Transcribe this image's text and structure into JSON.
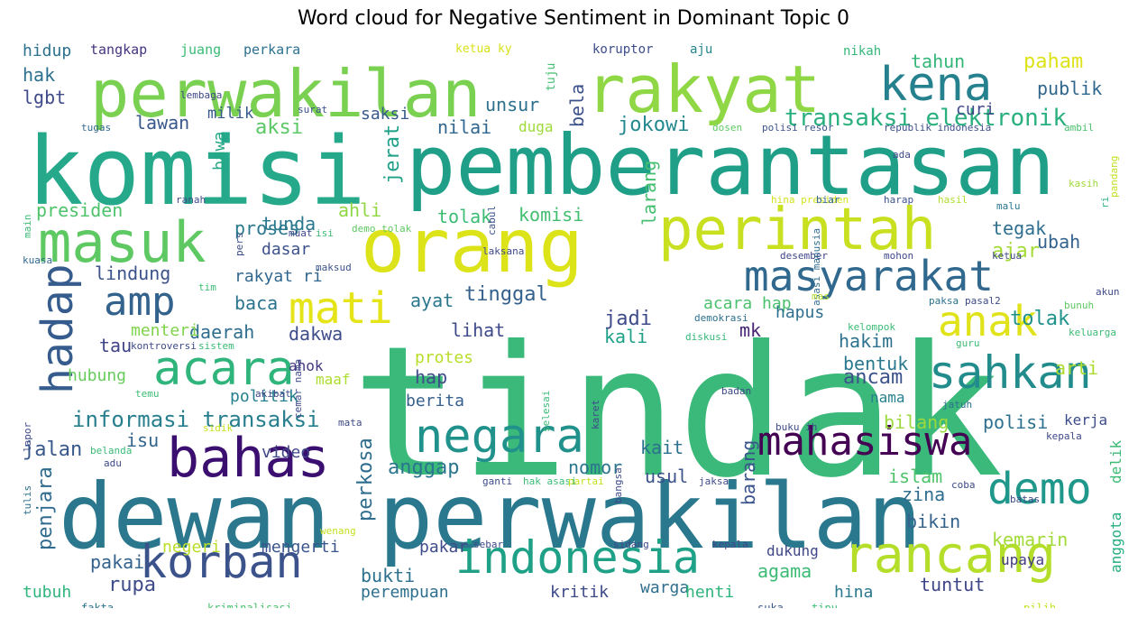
{
  "title": "Word cloud for Negative Sentiment in Dominant Topic 0",
  "words": [
    {
      "text": "tindak",
      "color": "#3bb97a"
    },
    {
      "text": "komisi",
      "color": "#25a98a"
    },
    {
      "text": "pemberantasan",
      "color": "#1f9f88"
    },
    {
      "text": "dewan",
      "color": "#2b788e"
    },
    {
      "text": "perwakilan",
      "color": "#29788e"
    },
    {
      "text": "perwakilan",
      "color": "#7ad151"
    },
    {
      "text": "rakyat",
      "color": "#8fd744"
    },
    {
      "text": "orang",
      "color": "#dce318"
    },
    {
      "text": "perintah",
      "color": "#c8e020"
    },
    {
      "text": "masuk",
      "color": "#5ec962"
    },
    {
      "text": "bahas",
      "color": "#3b0f70"
    },
    {
      "text": "negara",
      "color": "#21918c"
    },
    {
      "text": "kena",
      "color": "#26818e"
    },
    {
      "text": "masyarakat",
      "color": "#31688e"
    },
    {
      "text": "mahasiswa",
      "color": "#440154"
    },
    {
      "text": "korban",
      "color": "#3b528b"
    },
    {
      "text": "indonesia",
      "color": "#1fa187"
    },
    {
      "text": "rancang",
      "color": "#b5de2b"
    },
    {
      "text": "acara",
      "color": "#2fb47c"
    },
    {
      "text": "sahkan",
      "color": "#228c8d"
    },
    {
      "text": "anak",
      "color": "#e1e31a"
    },
    {
      "text": "demo",
      "color": "#1f978b"
    },
    {
      "text": "amp",
      "color": "#33628d"
    },
    {
      "text": "mati",
      "color": "#e5e419"
    },
    {
      "text": "hadap",
      "color": "#365c8d"
    },
    {
      "text": "transaksi elektronik",
      "color": "#2ab07f"
    },
    {
      "text": "informasi transaksi",
      "color": "#277f8e"
    },
    {
      "text": "hidup",
      "color": "#2c718e"
    },
    {
      "text": "tangkap",
      "color": "#46337e"
    },
    {
      "text": "juang",
      "color": "#3bbb75"
    },
    {
      "text": "perkara",
      "color": "#2c728e"
    },
    {
      "text": "ketua ky",
      "color": "#d8e219"
    },
    {
      "text": "koruptor",
      "color": "#3d4d8a"
    },
    {
      "text": "aju",
      "color": "#25858e"
    },
    {
      "text": "tuju",
      "color": "#44bf70"
    },
    {
      "text": "nikah",
      "color": "#35b779"
    },
    {
      "text": "hak",
      "color": "#2d708e"
    },
    {
      "text": "lgbt",
      "color": "#3e4989"
    },
    {
      "text": "tahun",
      "color": "#35b779"
    },
    {
      "text": "paham",
      "color": "#dde318"
    },
    {
      "text": "publik",
      "color": "#30678d"
    },
    {
      "text": "lawan",
      "color": "#38588c"
    },
    {
      "text": "milik",
      "color": "#38598c"
    },
    {
      "text": "saksi",
      "color": "#375a8c"
    },
    {
      "text": "unsur",
      "color": "#2d718e"
    },
    {
      "text": "nilai",
      "color": "#31678e"
    },
    {
      "text": "bela",
      "color": "#3b518b"
    },
    {
      "text": "jokowi",
      "color": "#23898e"
    },
    {
      "text": "curi",
      "color": "#3f4889"
    },
    {
      "text": "aksi",
      "color": "#5ac864"
    },
    {
      "text": "duga",
      "color": "#9fda3a"
    },
    {
      "text": "jerat",
      "color": "#1fa187"
    },
    {
      "text": "bawa",
      "color": "#22a785"
    },
    {
      "text": "presiden",
      "color": "#4ec36b"
    },
    {
      "text": "proses",
      "color": "#2a778e"
    },
    {
      "text": "ahli",
      "color": "#90d743"
    },
    {
      "text": "tolak",
      "color": "#3dbc74"
    },
    {
      "text": "komisi",
      "color": "#42be71"
    },
    {
      "text": "larang",
      "color": "#44bf70"
    },
    {
      "text": "tegak",
      "color": "#2e6e8e"
    },
    {
      "text": "ajar",
      "color": "#a5db36"
    },
    {
      "text": "ubah",
      "color": "#33628d"
    },
    {
      "text": "tunda",
      "color": "#2a788e"
    },
    {
      "text": "dasar",
      "color": "#3c508b"
    },
    {
      "text": "lindung",
      "color": "#3b528b"
    },
    {
      "text": "rakyat ri",
      "color": "#31678e"
    },
    {
      "text": "baca",
      "color": "#2c738e"
    },
    {
      "text": "ayat",
      "color": "#2a778e"
    },
    {
      "text": "tinggal",
      "color": "#34618d"
    },
    {
      "text": "jadi",
      "color": "#3e4a89"
    },
    {
      "text": "acara hap",
      "color": "#4ac16d"
    },
    {
      "text": "hapus",
      "color": "#2e6f8e"
    },
    {
      "text": "daerah",
      "color": "#2e6d8e"
    },
    {
      "text": "dakwa",
      "color": "#3e4c8a"
    },
    {
      "text": "lihat",
      "color": "#3e4a89"
    },
    {
      "text": "kali",
      "color": "#1fa088"
    },
    {
      "text": "mk",
      "color": "#482475"
    },
    {
      "text": "hakim",
      "color": "#2c728e"
    },
    {
      "text": "bentuk",
      "color": "#2a788e"
    },
    {
      "text": "arti",
      "color": "#addc30"
    },
    {
      "text": "tolak",
      "color": "#20928c"
    },
    {
      "text": "tau",
      "color": "#404588"
    },
    {
      "text": "menteri",
      "color": "#81d34d"
    },
    {
      "text": "protes",
      "color": "#b8de29"
    },
    {
      "text": "hubung",
      "color": "#67cc5c"
    },
    {
      "text": "ahok",
      "color": "#453781"
    },
    {
      "text": "maaf",
      "color": "#addc30"
    },
    {
      "text": "hap",
      "color": "#3e4a89"
    },
    {
      "text": "ancam",
      "color": "#3b528b"
    },
    {
      "text": "politik",
      "color": "#27808e"
    },
    {
      "text": "berita",
      "color": "#35608d"
    },
    {
      "text": "nama",
      "color": "#27808e"
    },
    {
      "text": "bilang",
      "color": "#9bd93c"
    },
    {
      "text": "polisi",
      "color": "#2d708e"
    },
    {
      "text": "kerja",
      "color": "#3d4d8a"
    },
    {
      "text": "jalan",
      "color": "#38588c"
    },
    {
      "text": "isu",
      "color": "#32658e"
    },
    {
      "text": "video",
      "color": "#3f4788"
    },
    {
      "text": "kait",
      "color": "#2c718e"
    },
    {
      "text": "anggap",
      "color": "#2a768e"
    },
    {
      "text": "nomor",
      "color": "#2b758e"
    },
    {
      "text": "usul",
      "color": "#3b528b"
    },
    {
      "text": "islam",
      "color": "#4ec36b"
    },
    {
      "text": "zina",
      "color": "#2e6e8e"
    },
    {
      "text": "bikin",
      "color": "#33628d"
    },
    {
      "text": "barang",
      "color": "#3a538b"
    },
    {
      "text": "perkosa",
      "color": "#2e6d8e"
    },
    {
      "text": "penjara",
      "color": "#2f6b8e"
    },
    {
      "text": "pakai",
      "color": "#33628d"
    },
    {
      "text": "rupa",
      "color": "#3e4c8a"
    },
    {
      "text": "negeri",
      "color": "#bade28"
    },
    {
      "text": "mengerti",
      "color": "#3a548c"
    },
    {
      "text": "pakar",
      "color": "#3e4c8a"
    },
    {
      "text": "bukti",
      "color": "#2d718e"
    },
    {
      "text": "dukung",
      "color": "#3f4788"
    },
    {
      "text": "agama",
      "color": "#3bbb75"
    },
    {
      "text": "kemarin",
      "color": "#a2da37"
    },
    {
      "text": "upaya",
      "color": "#443a83"
    },
    {
      "text": "anggota",
      "color": "#26ad81"
    },
    {
      "text": "delik",
      "color": "#3bbb75"
    },
    {
      "text": "tubuh",
      "color": "#2fb47c"
    },
    {
      "text": "perempuan",
      "color": "#2d708e"
    },
    {
      "text": "kritik",
      "color": "#3e4a89"
    },
    {
      "text": "warga",
      "color": "#2e6e8e"
    },
    {
      "text": "henti",
      "color": "#2fb47c"
    },
    {
      "text": "hina",
      "color": "#2a778e"
    },
    {
      "text": "tuntut",
      "color": "#3f4788"
    },
    {
      "text": "fakta",
      "color": "#2c728e"
    },
    {
      "text": "kriminalisasi",
      "color": "#4ac16d"
    },
    {
      "text": "suka",
      "color": "#38588c"
    },
    {
      "text": "tipu",
      "color": "#3bbb75"
    },
    {
      "text": "pilih",
      "color": "#c5e021"
    },
    {
      "text": "lembaga",
      "color": "#3f4889"
    },
    {
      "text": "surat",
      "color": "#3c508b"
    },
    {
      "text": "tugas",
      "color": "#31688e"
    },
    {
      "text": "dosen",
      "color": "#5ec962"
    },
    {
      "text": "polisi resor",
      "color": "#3b528b"
    },
    {
      "text": "republik indonesia",
      "color": "#3d4e8a"
    },
    {
      "text": "ambil",
      "color": "#48c16e"
    },
    {
      "text": "ada",
      "color": "#3e4989"
    },
    {
      "text": "pandang",
      "color": "#c2df23"
    },
    {
      "text": "main",
      "color": "#3bbb75"
    },
    {
      "text": "ranah",
      "color": "#3e4a89"
    },
    {
      "text": "hina presiden",
      "color": "#d2e21b"
    },
    {
      "text": "biar",
      "color": "#31678e"
    },
    {
      "text": "harap",
      "color": "#3b528b"
    },
    {
      "text": "hasil",
      "color": "#b0dd2f"
    },
    {
      "text": "malu",
      "color": "#2a788e"
    },
    {
      "text": "kasih",
      "color": "#a0da39"
    },
    {
      "text": "ri",
      "color": "#2ab07f"
    },
    {
      "text": "pers",
      "color": "#3d4e8a"
    },
    {
      "text": "muat",
      "color": "#404588"
    },
    {
      "text": "isi",
      "color": "#3bbb75"
    },
    {
      "text": "demo tolak",
      "color": "#5ec962"
    },
    {
      "text": "cabul",
      "color": "#3b528b"
    },
    {
      "text": "desember",
      "color": "#404588"
    },
    {
      "text": "asasi manusia",
      "color": "#2e6e8e"
    },
    {
      "text": "mohon",
      "color": "#3f4889"
    },
    {
      "text": "ketua",
      "color": "#3e4a89"
    },
    {
      "text": "kuasa",
      "color": "#31688e"
    },
    {
      "text": "maksud",
      "color": "#3b528b"
    },
    {
      "text": "laksana",
      "color": "#3f4889"
    },
    {
      "text": "tim",
      "color": "#3bbb75"
    },
    {
      "text": "mas",
      "color": "#b8de29"
    },
    {
      "text": "paksa",
      "color": "#2c718e"
    },
    {
      "text": "pasal2",
      "color": "#3e4a89"
    },
    {
      "text": "bunuh",
      "color": "#5ec962"
    },
    {
      "text": "akun",
      "color": "#3e4a89"
    },
    {
      "text": "demokrasi",
      "color": "#2d708e"
    },
    {
      "text": "diskusi",
      "color": "#35b779"
    },
    {
      "text": "kelompok",
      "color": "#3bbb75"
    },
    {
      "text": "keluarga",
      "color": "#3bbb75"
    },
    {
      "text": "kontroversi",
      "color": "#3e4a89"
    },
    {
      "text": "sistem",
      "color": "#3bbb75"
    },
    {
      "text": "guru",
      "color": "#3bbb75"
    },
    {
      "text": "cemar nama",
      "color": "#3e4a89"
    },
    {
      "text": "badan",
      "color": "#3e4a89"
    },
    {
      "text": "temu",
      "color": "#3bbb75"
    },
    {
      "text": "akibat",
      "color": "#3f4788"
    },
    {
      "text": "selesai",
      "color": "#3bbb75"
    },
    {
      "text": "karet",
      "color": "#3e4a89"
    },
    {
      "text": "jatuh",
      "color": "#2c718e"
    },
    {
      "text": "buku ih",
      "color": "#3e4a89"
    },
    {
      "text": "kepala",
      "color": "#3e4a89"
    },
    {
      "text": "sidik",
      "color": "#c5e021"
    },
    {
      "text": "mata",
      "color": "#3e4a89"
    },
    {
      "text": "belanda",
      "color": "#3bbb75"
    },
    {
      "text": "lapor",
      "color": "#3e4a89"
    },
    {
      "text": "tulis",
      "color": "#2c718e"
    },
    {
      "text": "adu",
      "color": "#3e4a89"
    },
    {
      "text": "ganti",
      "color": "#3e4a89"
    },
    {
      "text": "hak asasi",
      "color": "#3bbb75"
    },
    {
      "text": "partai",
      "color": "#c5e021"
    },
    {
      "text": "bangsa",
      "color": "#3e4a89"
    },
    {
      "text": "jaksa",
      "color": "#3e4a89"
    },
    {
      "text": "coba",
      "color": "#3e4a89"
    },
    {
      "text": "batas",
      "color": "#3e4a89"
    },
    {
      "text": "wenang",
      "color": "#c5e021"
    },
    {
      "text": "sebar",
      "color": "#3e4a89"
    },
    {
      "text": "sidang",
      "color": "#3e4a89"
    },
    {
      "text": "kepala",
      "color": "#3e4a89"
    }
  ]
}
